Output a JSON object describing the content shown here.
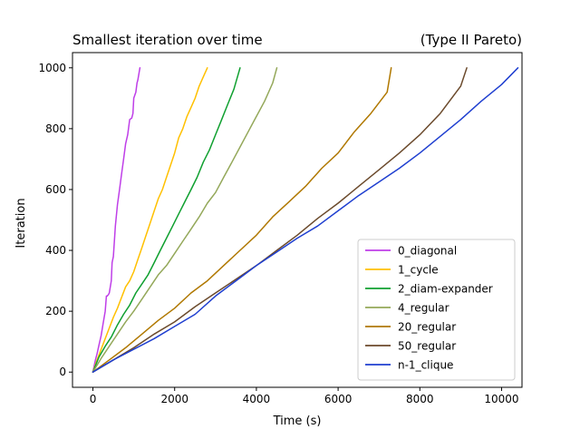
{
  "chart_data": {
    "type": "line",
    "title_left": "Smallest iteration over time",
    "title_right": "(Type II Pareto)",
    "xlabel": "Time (s)",
    "ylabel": "Iteration",
    "xlim": [
      -500,
      10500
    ],
    "ylim": [
      -50,
      1050
    ],
    "xticks": [
      0,
      2000,
      4000,
      6000,
      8000,
      10000
    ],
    "yticks": [
      0,
      200,
      400,
      600,
      800,
      1000
    ],
    "grid": false,
    "legend_position": "lower-right",
    "series": [
      {
        "name": "0_diagonal",
        "color": "#bf3fe8",
        "x": [
          0,
          60,
          100,
          150,
          200,
          250,
          300,
          330,
          350,
          380,
          400,
          450,
          470,
          500,
          550,
          600,
          650,
          700,
          750,
          800,
          850,
          900,
          950,
          980,
          1000,
          1050,
          1080,
          1100,
          1150
        ],
        "y": [
          0,
          40,
          60,
          90,
          120,
          160,
          200,
          250,
          250,
          255,
          260,
          300,
          360,
          380,
          480,
          550,
          600,
          650,
          700,
          750,
          780,
          830,
          835,
          850,
          900,
          920,
          950,
          960,
          1000
        ]
      },
      {
        "name": "1_cycle",
        "color": "#ffc000",
        "x": [
          0,
          100,
          200,
          300,
          400,
          500,
          600,
          700,
          800,
          900,
          1000,
          1100,
          1200,
          1300,
          1400,
          1500,
          1600,
          1700,
          1800,
          1900,
          2000,
          2100,
          2200,
          2300,
          2400,
          2500,
          2600,
          2700,
          2800
        ],
        "y": [
          0,
          40,
          75,
          110,
          145,
          180,
          210,
          245,
          280,
          300,
          330,
          370,
          410,
          450,
          490,
          530,
          570,
          600,
          640,
          680,
          720,
          770,
          800,
          840,
          870,
          900,
          940,
          970,
          1000
        ]
      },
      {
        "name": "2_diam-expander",
        "color": "#10a030",
        "x": [
          0,
          150,
          300,
          450,
          600,
          750,
          900,
          1050,
          1200,
          1350,
          1500,
          1650,
          1800,
          1950,
          2100,
          2250,
          2400,
          2550,
          2700,
          2850,
          3000,
          3150,
          3300,
          3450,
          3600
        ],
        "y": [
          0,
          50,
          85,
          115,
          155,
          190,
          220,
          260,
          290,
          320,
          360,
          400,
          440,
          480,
          520,
          560,
          600,
          640,
          690,
          730,
          780,
          830,
          880,
          930,
          1000
        ]
      },
      {
        "name": "4_regular",
        "color": "#94a85a",
        "x": [
          0,
          200,
          400,
          600,
          800,
          1000,
          1200,
          1400,
          1600,
          1800,
          2000,
          2200,
          2400,
          2600,
          2800,
          3000,
          3200,
          3400,
          3600,
          3800,
          4000,
          4200,
          4400,
          4500
        ],
        "y": [
          0,
          45,
          85,
          125,
          165,
          200,
          240,
          280,
          320,
          350,
          390,
          430,
          470,
          510,
          555,
          590,
          640,
          690,
          740,
          790,
          840,
          890,
          950,
          1000
        ]
      },
      {
        "name": "20_regular",
        "color": "#b07800",
        "x": [
          0,
          400,
          800,
          1200,
          1600,
          2000,
          2400,
          2800,
          3200,
          3600,
          4000,
          4400,
          4800,
          5200,
          5600,
          6000,
          6400,
          6800,
          7200,
          7300
        ],
        "y": [
          0,
          40,
          80,
          125,
          170,
          210,
          260,
          300,
          350,
          400,
          450,
          510,
          560,
          610,
          670,
          720,
          790,
          850,
          920,
          1000
        ]
      },
      {
        "name": "50_regular",
        "color": "#6b4a2c",
        "x": [
          0,
          500,
          1000,
          1500,
          2000,
          2500,
          3000,
          3500,
          4000,
          4500,
          5000,
          5500,
          6000,
          6500,
          7000,
          7500,
          8000,
          8500,
          9000,
          9150
        ],
        "y": [
          0,
          40,
          80,
          125,
          165,
          215,
          260,
          305,
          350,
          400,
          450,
          505,
          555,
          610,
          665,
          720,
          780,
          850,
          940,
          1000
        ]
      },
      {
        "name": "n-1_clique",
        "color": "#1f3fd0",
        "x": [
          0,
          500,
          1000,
          1500,
          2000,
          2500,
          3000,
          3500,
          4000,
          4500,
          5000,
          5500,
          6000,
          6500,
          7000,
          7500,
          8000,
          8500,
          9000,
          9500,
          10000,
          10400
        ],
        "y": [
          0,
          40,
          75,
          110,
          150,
          190,
          250,
          300,
          350,
          395,
          440,
          480,
          530,
          580,
          625,
          670,
          720,
          775,
          830,
          890,
          945,
          1000
        ]
      }
    ]
  }
}
